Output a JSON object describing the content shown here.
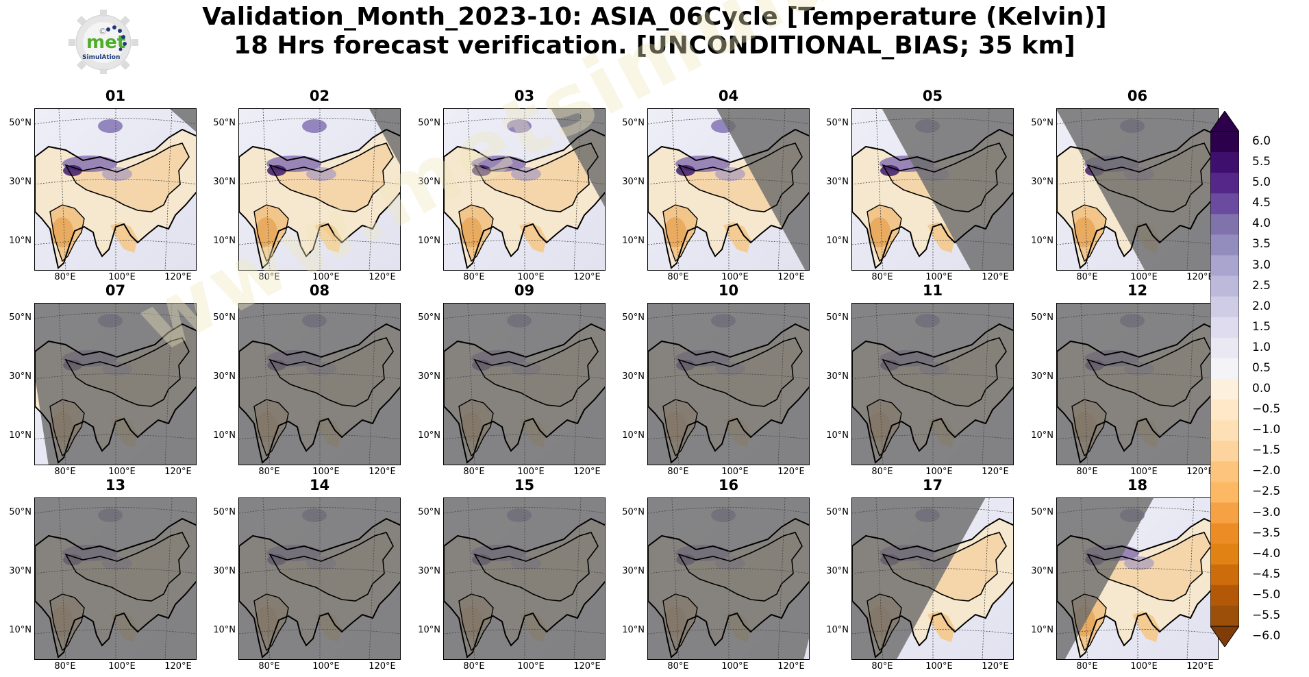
{
  "title": {
    "line1": "Validation_Month_2023-10: ASIA_06Cycle [Temperature (Kelvin)]",
    "line2": "18 Hrs forecast verification. [UNCONDITIONAL_BIAS; 35 km]"
  },
  "logo": {
    "text_main": "met",
    "text_sub": "SimulAtion",
    "mark": "©"
  },
  "watermark": "www.metsimulation.com",
  "axis": {
    "lat_ticks": [
      "50°N",
      "30°N",
      "10°N"
    ],
    "lon_ticks": [
      "80°E",
      "100°E",
      "120°E"
    ]
  },
  "panels": [
    {
      "label": "01",
      "day_fraction": 0.0
    },
    {
      "label": "02",
      "day_fraction": 0.05
    },
    {
      "label": "03",
      "day_fraction": 0.2
    },
    {
      "label": "04",
      "day_fraction": 0.45
    },
    {
      "label": "05",
      "day_fraction": 0.7
    },
    {
      "label": "06",
      "day_fraction": 0.9
    },
    {
      "label": "07",
      "day_fraction": 1.0
    },
    {
      "label": "08",
      "day_fraction": 1.0
    },
    {
      "label": "09",
      "day_fraction": 1.0
    },
    {
      "label": "10",
      "day_fraction": 1.0
    },
    {
      "label": "11",
      "day_fraction": 1.0
    },
    {
      "label": "12",
      "day_fraction": 1.0
    },
    {
      "label": "13",
      "day_fraction": 1.0
    },
    {
      "label": "14",
      "day_fraction": 1.0
    },
    {
      "label": "15",
      "day_fraction": 1.0
    },
    {
      "label": "16",
      "day_fraction": 0.98
    },
    {
      "label": "17",
      "day_fraction": 0.8
    },
    {
      "label": "18",
      "day_fraction": 0.55
    }
  ],
  "colorbar": {
    "ticks": [
      "6.0",
      "5.5",
      "5.0",
      "4.5",
      "4.0",
      "3.5",
      "3.0",
      "2.5",
      "2.0",
      "1.5",
      "1.0",
      "0.5",
      "0.0",
      "−0.5",
      "−1.0",
      "−1.5",
      "−2.0",
      "−2.5",
      "−3.0",
      "−3.5",
      "−4.0",
      "−4.5",
      "−5.0",
      "−5.5",
      "−6.0"
    ],
    "colors_top_to_bottom": [
      "#2d004b",
      "#3f0f6e",
      "#542788",
      "#6a4ba0",
      "#8073ac",
      "#938dbd",
      "#a9a5cf",
      "#bdb9db",
      "#cfcde6",
      "#dedcee",
      "#e9e8f3",
      "#f4f4f7",
      "#fdf0dd",
      "#fee8c8",
      "#fee0b6",
      "#fdd49e",
      "#fdc47e",
      "#fdb863",
      "#f6a244",
      "#ec8c25",
      "#e08214",
      "#cd6c0b",
      "#b35806",
      "#9c4f09",
      "#7f3b08"
    ]
  }
}
